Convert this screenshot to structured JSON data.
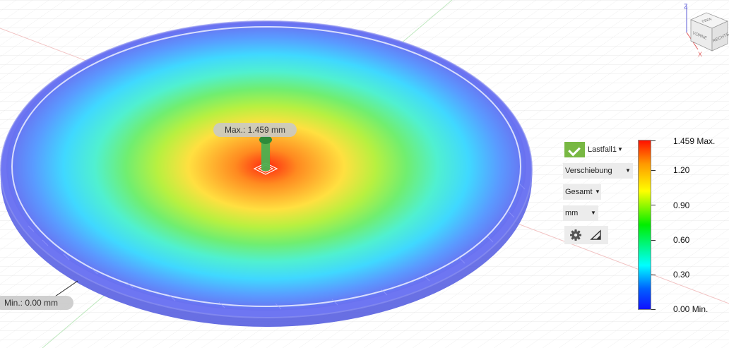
{
  "probes": {
    "max": "Max.: 1.459 mm",
    "min": "Min.: 0.00 mm"
  },
  "controls": {
    "load_case": "Lastfall1",
    "result_type": "Verschiebung",
    "component": "Gesamt",
    "unit": "mm"
  },
  "legend": {
    "max_label": "1.459 Max.",
    "ticks": [
      "1.20",
      "0.90",
      "0.60",
      "0.30"
    ],
    "min_label": "0.00 Min.",
    "colors": [
      "#ff1000",
      "#ff9a00",
      "#ffff00",
      "#00ee00",
      "#00ffff",
      "#0060ff",
      "#1010ff"
    ]
  },
  "viewcube": {
    "top_face": "OBEN",
    "front_face": "VORNE",
    "right_face": "RECHTS",
    "axis_z": "Z",
    "axis_x": "X"
  },
  "icons": [
    "checkmark-icon",
    "settings-gear-icon",
    "adjust-triangle-icon",
    "chevron-down-icon"
  ]
}
